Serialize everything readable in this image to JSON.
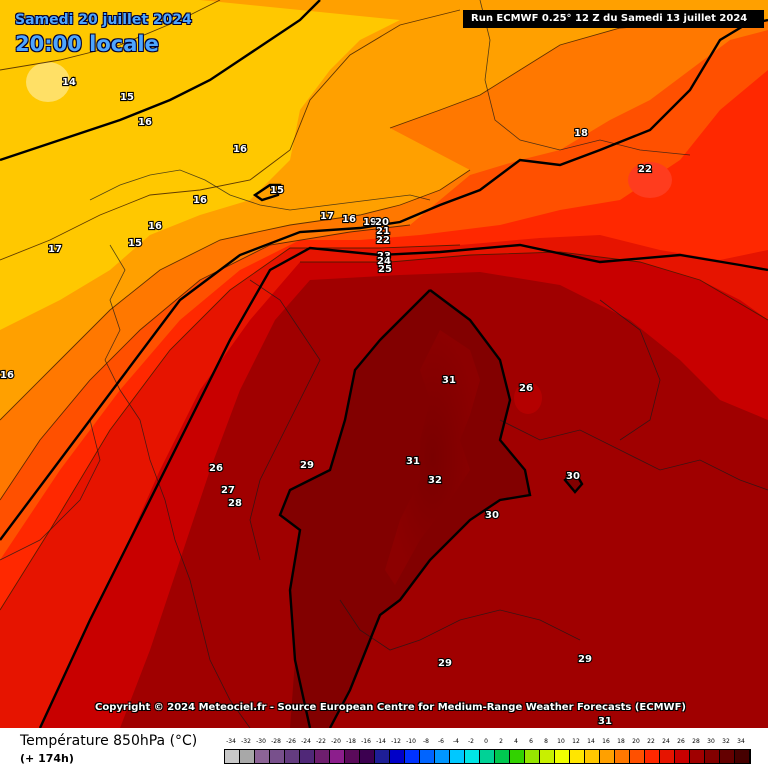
{
  "header": {
    "date": "Samedi 20 juillet 2024",
    "time": "20:00 locale",
    "run": "Run ECMWF 0.25° 12 Z du Samedi 13 juillet 2024"
  },
  "copyright": "Copyright © 2024 Meteociel.fr - Source European Centre for Medium-Range Weather Forecasts (ECMWF)",
  "footer": {
    "variable": "Température 850hPa (°C)",
    "lead": "(+ 174h)"
  },
  "legend": {
    "ticks": [
      "-34",
      "-32",
      "-30",
      "-28",
      "-26",
      "-24",
      "-22",
      "-20",
      "-18",
      "-16",
      "-14",
      "-12",
      "-10",
      "-8",
      "-6",
      "-4",
      "-2",
      "0",
      "2",
      "4",
      "6",
      "8",
      "10",
      "12",
      "14",
      "16",
      "18",
      "20",
      "22",
      "24",
      "26",
      "28",
      "30",
      "32",
      "34"
    ],
    "colors": [
      "#c8c8c8",
      "#a8a8a8",
      "#8c6496",
      "#78508c",
      "#643c80",
      "#502878",
      "#6e1e6e",
      "#8c1e8c",
      "#5a0a5a",
      "#3c0050",
      "#1e1e96",
      "#0000c8",
      "#0032ff",
      "#0064ff",
      "#0096ff",
      "#00c8ff",
      "#00e6e6",
      "#00d296",
      "#00c850",
      "#32d200",
      "#96e600",
      "#c8f000",
      "#f0ff00",
      "#ffe600",
      "#ffc800",
      "#ffa000",
      "#ff7800",
      "#ff5000",
      "#ff2800",
      "#e61400",
      "#c80000",
      "#a00000",
      "#820000",
      "#640000",
      "#460000"
    ]
  },
  "map_labels": [
    "14",
    "15",
    "16",
    "16",
    "16",
    "17",
    "15",
    "16",
    "15",
    "16",
    "17",
    "16",
    "19",
    "20",
    "21",
    "22",
    "23",
    "24",
    "25",
    "18",
    "22",
    "31",
    "26",
    "26",
    "29",
    "27",
    "28",
    "31",
    "32",
    "30",
    "30",
    "29",
    "29",
    "31"
  ]
}
